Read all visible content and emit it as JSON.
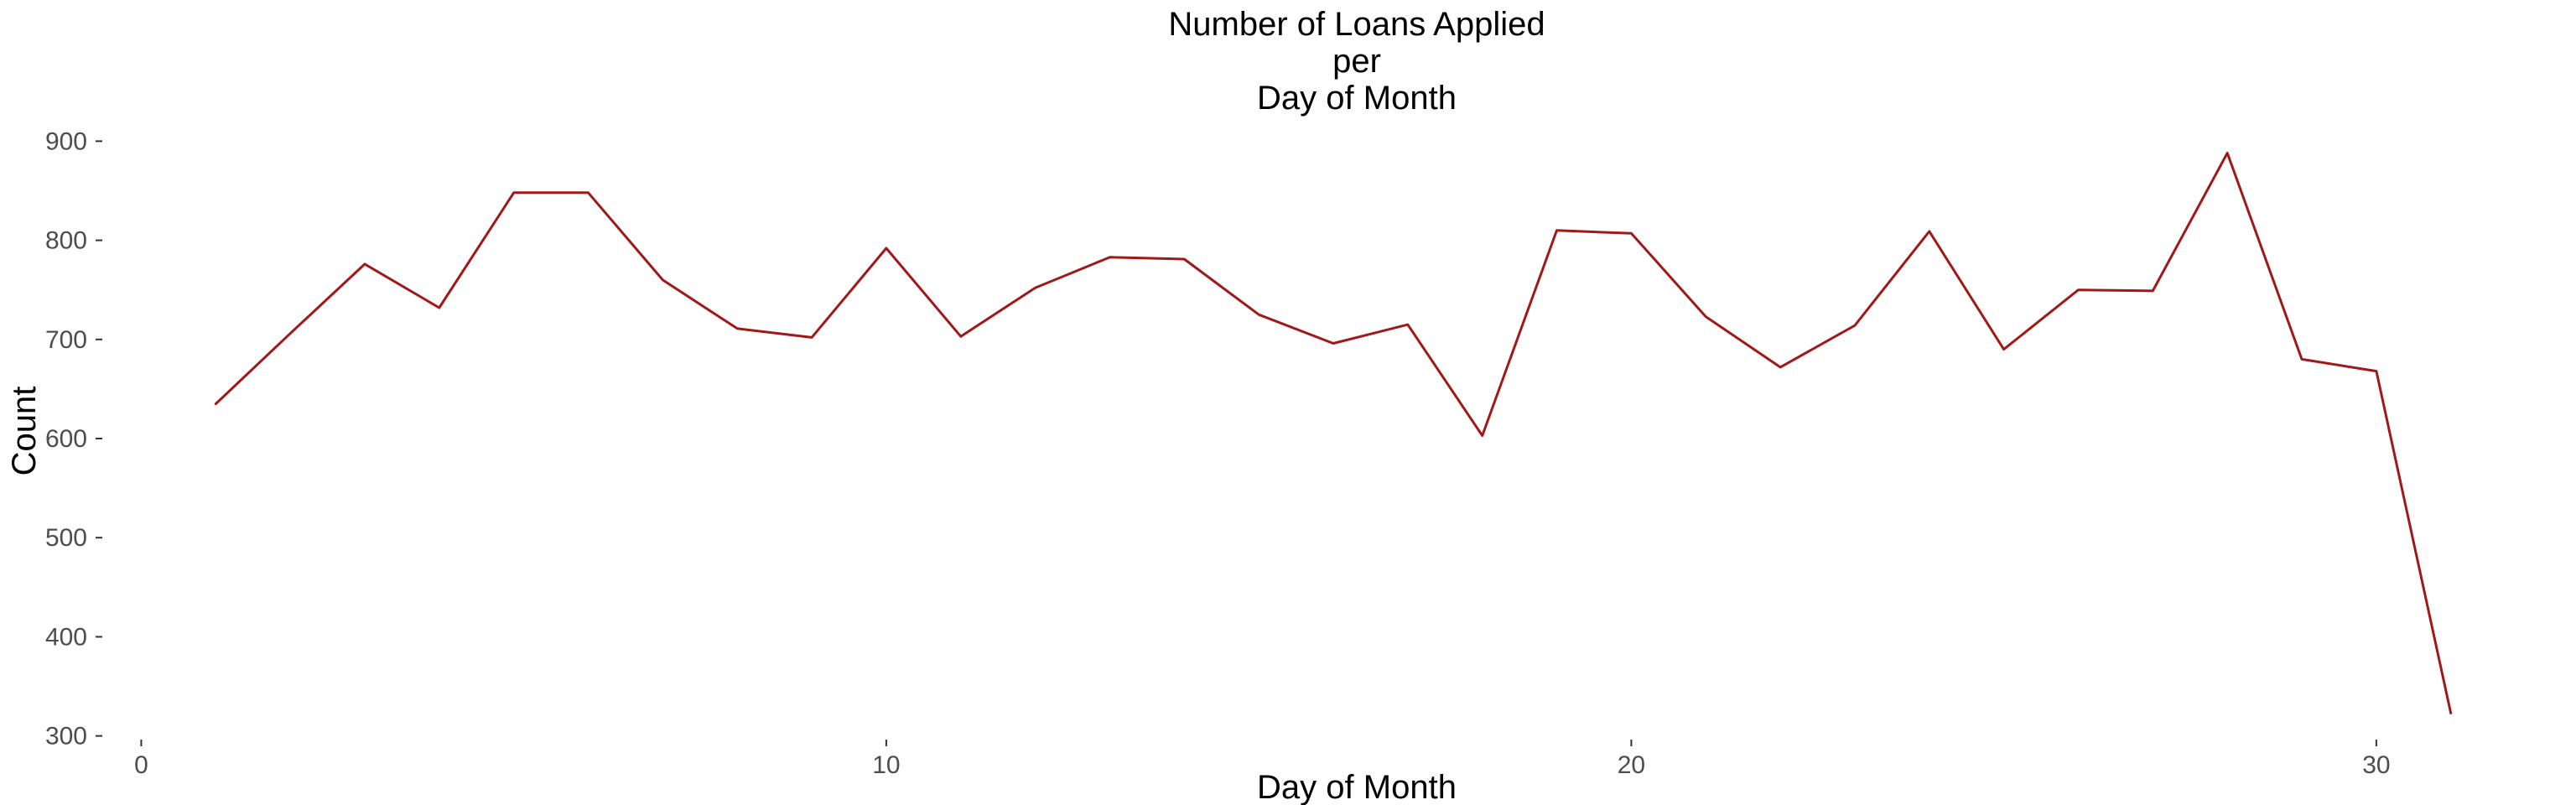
{
  "chart_data": {
    "type": "line",
    "title_lines": [
      "Number of Loans Applied",
      "per",
      "Day of Month"
    ],
    "xlabel": "Day of Month",
    "ylabel": "Count",
    "xlim": [
      -0.5,
      32.5
    ],
    "ylim": [
      298,
      902
    ],
    "x_ticks": [
      0,
      10,
      20,
      30
    ],
    "y_ticks": [
      300,
      400,
      500,
      600,
      700,
      800,
      900
    ],
    "grid": false,
    "line_color": "#a01818",
    "series": [
      {
        "x": [
          1,
          2,
          3,
          4,
          5,
          6,
          7,
          8,
          9,
          10,
          11,
          12,
          13,
          14,
          15,
          16,
          17,
          18,
          19,
          20,
          21,
          22,
          23,
          24,
          25,
          26,
          27,
          28,
          29,
          30,
          31
        ],
        "values": [
          635,
          706,
          776,
          732,
          848,
          848,
          760,
          711,
          702,
          792,
          703,
          752,
          783,
          781,
          725,
          696,
          715,
          603,
          810,
          807,
          723,
          672,
          714,
          809,
          690,
          750,
          749,
          888,
          680,
          668,
          323
        ]
      }
    ]
  }
}
